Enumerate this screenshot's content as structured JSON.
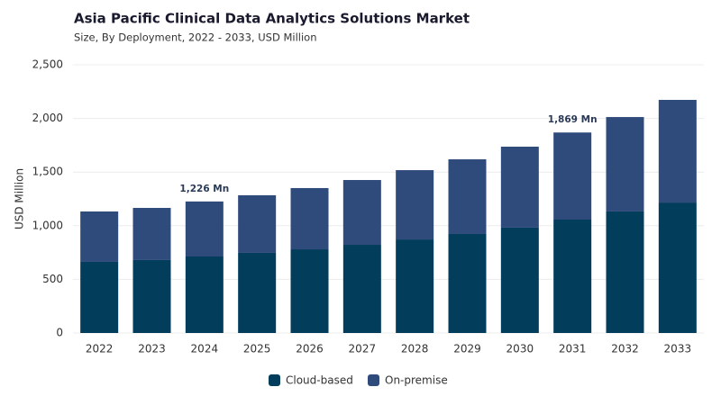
{
  "chart_data": {
    "type": "stacked_bar",
    "title": "Asia Pacific Clinical Data Analytics Solutions Market",
    "subtitle": "Size, By Deployment, 2022 - 2033, USD Million",
    "y_label": "USD Million",
    "categories": [
      "2022",
      "2023",
      "2024",
      "2025",
      "2026",
      "2027",
      "2028",
      "2029",
      "2030",
      "2031",
      "2032",
      "2033"
    ],
    "series": [
      {
        "name": "Cloud-based",
        "color": "#023d5b",
        "values": [
          663,
          680,
          713,
          747,
          780,
          822,
          872,
          923,
          982,
          1057,
          1133,
          1216
        ]
      },
      {
        "name": "On-premise",
        "color": "#2f4b7c",
        "values": [
          470,
          486,
          513,
          537,
          571,
          604,
          646,
          696,
          755,
          812,
          880,
          957
        ]
      }
    ],
    "annotations": [
      {
        "x": "2024",
        "y": 1226,
        "text": "1,226 Mn"
      },
      {
        "x": "2031",
        "y": 1869,
        "text": "1,869 Mn"
      }
    ],
    "ylim": [
      0,
      2500
    ],
    "yticks": [
      0,
      {
        "value": 500,
        "label": "500"
      },
      {
        "value": 1000,
        "label": "1,000"
      },
      {
        "value": 1500,
        "label": "1,500"
      },
      {
        "value": 2000,
        "label": "2,000"
      },
      {
        "value": 2500,
        "label": "2,500"
      }
    ],
    "grid": true,
    "legend": "bottom"
  }
}
